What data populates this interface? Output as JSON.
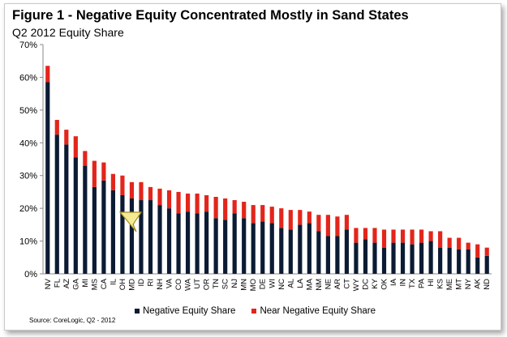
{
  "title": "Figure 1 - Negative Equity Concentrated Mostly in Sand States",
  "subtitle": "Q2 2012 Equity Share",
  "source": "Source: CoreLogic, Q2 - 2012",
  "colors": {
    "negative": "#0b1b33",
    "near_negative": "#e3251b"
  },
  "chart_data": {
    "type": "bar",
    "stacked": true,
    "ylim": [
      0,
      70
    ],
    "y_ticks": [
      "0%",
      "10%",
      "20%",
      "30%",
      "40%",
      "50%",
      "60%",
      "70%"
    ],
    "categories": [
      "NV",
      "FL",
      "AZ",
      "GA",
      "MI",
      "MS",
      "CA",
      "IL",
      "OH",
      "MD",
      "ID",
      "RI",
      "NH",
      "VA",
      "CO",
      "WA",
      "UT",
      "OR",
      "TN",
      "SC",
      "NJ",
      "MN",
      "MO",
      "DE",
      "WI",
      "NC",
      "AL",
      "LA",
      "MA",
      "NM",
      "NE",
      "AR",
      "CT",
      "WY",
      "DC",
      "KY",
      "OK",
      "IA",
      "IN",
      "TX",
      "PA",
      "HI",
      "KS",
      "ME",
      "MT",
      "NY",
      "AK",
      "ND"
    ],
    "series": [
      {
        "name": "Negative Equity Share",
        "values": [
          58.5,
          42.5,
          39.5,
          35.5,
          33,
          26.5,
          28.5,
          25.5,
          24,
          23,
          22.5,
          22.5,
          21,
          20,
          18.5,
          19,
          18.5,
          19,
          17,
          16.5,
          18.5,
          17,
          15.5,
          16,
          15.5,
          14,
          13.5,
          15,
          15.5,
          13,
          11.5,
          11.5,
          13.5,
          9.5,
          10.5,
          9.5,
          8,
          9.5,
          9.5,
          9,
          9.5,
          10,
          8,
          8,
          7.5,
          7.5,
          5,
          5.5
        ]
      },
      {
        "name": "Near Negative Equity Share",
        "values": [
          5,
          4.5,
          4.5,
          6.5,
          4.5,
          8,
          5.5,
          5,
          6,
          5,
          5.5,
          4,
          5,
          5.5,
          6.5,
          5.5,
          6,
          5,
          6.5,
          6.5,
          4,
          5,
          5.5,
          5,
          5,
          6,
          6,
          4.5,
          3.5,
          5,
          6.5,
          6,
          4.5,
          4.5,
          3.5,
          4.5,
          5.5,
          4,
          4,
          4.5,
          4,
          3,
          5,
          3,
          3.5,
          2,
          4,
          2.5
        ]
      }
    ],
    "legend_position": "bottom"
  }
}
